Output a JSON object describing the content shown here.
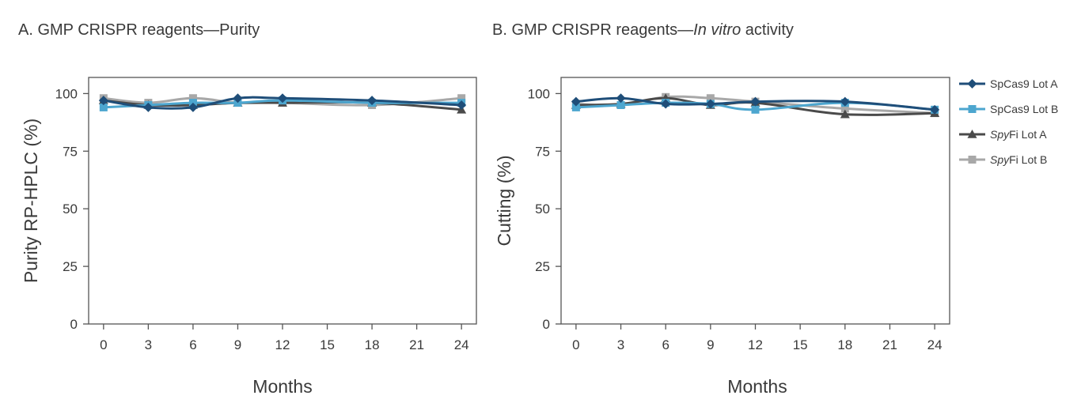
{
  "titles": {
    "a": "A. GMP CRISPR reagents—Purity",
    "b_prefix": "B. GMP CRISPR reagents—",
    "b_italic": "In vitro",
    "b_suffix": " activity"
  },
  "legend": [
    {
      "italic": "",
      "text": "SpCas9 Lot A",
      "color": "#1f4e79",
      "marker": "diamond"
    },
    {
      "italic": "",
      "text": "SpCas9 Lot B",
      "color": "#4da6cf",
      "marker": "square"
    },
    {
      "italic": "Spy",
      "text": "Fi Lot A",
      "color": "#4a4a4a",
      "marker": "triangle"
    },
    {
      "italic": "Spy",
      "text": "Fi Lot B",
      "color": "#a8a8a8",
      "marker": "square"
    }
  ],
  "chart_data": [
    {
      "type": "line",
      "title": "A. GMP CRISPR reagents—Purity",
      "xlabel": "Months",
      "ylabel": "Purity RP-HPLC (%)",
      "xlim": [
        -1,
        25
      ],
      "ylim": [
        0,
        107
      ],
      "xticks": [
        0,
        3,
        6,
        9,
        12,
        15,
        18,
        21,
        24
      ],
      "yticks": [
        0,
        25,
        50,
        75,
        100
      ],
      "grid": false,
      "x": [
        0,
        3,
        6,
        9,
        12,
        18,
        24
      ],
      "series": [
        {
          "name": "SpCas9 Lot A",
          "values": [
            97,
            94,
            94,
            98,
            98,
            97,
            95
          ]
        },
        {
          "name": "SpCas9 Lot B",
          "values": [
            94,
            95,
            96,
            96,
            97,
            96,
            96
          ]
        },
        {
          "name": "SpyFi Lot A",
          "values": [
            97,
            95,
            95,
            96,
            96,
            96,
            93
          ]
        },
        {
          "name": "SpyFi Lot B",
          "values": [
            98,
            96,
            98,
            96,
            96,
            95,
            98
          ]
        }
      ]
    },
    {
      "type": "line",
      "title": "B. GMP CRISPR reagents—In vitro activity",
      "xlabel": "Months",
      "ylabel": "Cutting (%)",
      "xlim": [
        -1,
        25
      ],
      "ylim": [
        0,
        107
      ],
      "xticks": [
        0,
        3,
        6,
        9,
        12,
        15,
        18,
        21,
        24
      ],
      "yticks": [
        0,
        25,
        50,
        75,
        100
      ],
      "grid": false,
      "x": [
        0,
        3,
        6,
        9,
        12,
        18,
        24
      ],
      "series": [
        {
          "name": "SpCas9 Lot A",
          "values": [
            96.5,
            98,
            95.5,
            95.5,
            96.5,
            96.5,
            93
          ]
        },
        {
          "name": "SpCas9 Lot B",
          "values": [
            94,
            95,
            96,
            95.5,
            93,
            96,
            93
          ]
        },
        {
          "name": "SpyFi Lot A",
          "values": [
            95,
            95.5,
            98,
            95,
            96,
            91,
            91.5
          ]
        },
        {
          "name": "SpyFi Lot B",
          "values": [
            95.5,
            95,
            98.5,
            98,
            96.5,
            93.5,
            91.5
          ]
        }
      ]
    }
  ]
}
